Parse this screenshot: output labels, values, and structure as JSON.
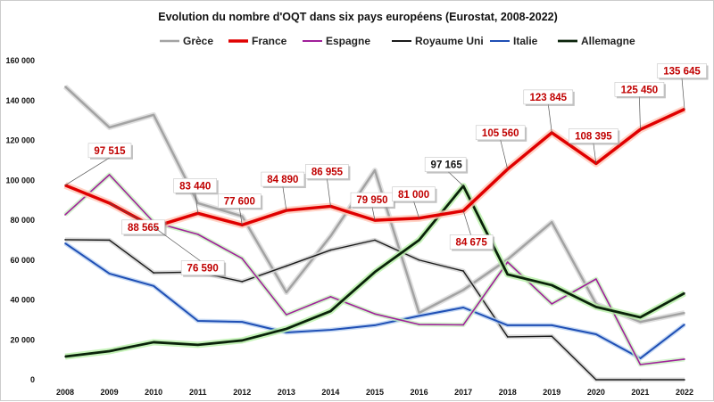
{
  "chart_data": {
    "type": "line",
    "title": "Evolution du nombre d'OQT dans six pays européens (Eurostat, 2008-2022)",
    "xlabel": "",
    "ylabel": "",
    "ylim": [
      0,
      160000
    ],
    "yticks": [
      "0",
      "20 000",
      "40 000",
      "60 000",
      "80 000",
      "100 000",
      "120 000",
      "140 000",
      "160 000"
    ],
    "x": [
      "2008",
      "2009",
      "2010",
      "2011",
      "2012",
      "2013",
      "2014",
      "2015",
      "2016",
      "2017",
      "2018",
      "2019",
      "2020",
      "2021",
      "2022"
    ],
    "legend_position": "top",
    "grid": false,
    "series": [
      {
        "name": "Grèce",
        "color": "#a3a3a3",
        "values": [
          147000,
          126500,
          132800,
          88500,
          82000,
          43800,
          72000,
          105000,
          33500,
          45000,
          60300,
          79000,
          38000,
          29000,
          33500
        ]
      },
      {
        "name": "France",
        "color": "#e00000",
        "values": [
          97515,
          88565,
          76590,
          83440,
          77600,
          84890,
          86955,
          79950,
          81000,
          84675,
          105560,
          123845,
          108395,
          125450,
          135645
        ],
        "labels": [
          "97 515",
          "88 565",
          "76 590",
          "83 440",
          "77 600",
          "84 890",
          "86 955",
          "79 950",
          "81 000",
          "84 675",
          "105 560",
          "123 845",
          "108 395",
          "125 450",
          "135 645"
        ]
      },
      {
        "name": "Espagne",
        "color": "#a0209a",
        "values": [
          82700,
          102800,
          79000,
          72900,
          60800,
          32600,
          41600,
          33000,
          27700,
          27500,
          59000,
          38000,
          50500,
          7600,
          10300
        ]
      },
      {
        "name": "Royaume Uni",
        "color": "#1a1a1a",
        "values": [
          70200,
          70000,
          53600,
          54000,
          49200,
          57000,
          65000,
          70000,
          60000,
          54500,
          21500,
          21800,
          0,
          0,
          0
        ]
      },
      {
        "name": "Italie",
        "color": "#1f4fb5",
        "values": [
          68400,
          53200,
          47000,
          29500,
          29000,
          23700,
          25000,
          27300,
          32000,
          36200,
          27300,
          27300,
          22800,
          10700,
          27700
        ]
      },
      {
        "name": "Allemagne",
        "color": "#0a230a",
        "values": [
          11600,
          14300,
          18800,
          17500,
          19700,
          25500,
          34400,
          54000,
          70000,
          97165,
          52800,
          47400,
          36500,
          31300,
          43400
        ],
        "peak_label": "97 165"
      }
    ]
  }
}
